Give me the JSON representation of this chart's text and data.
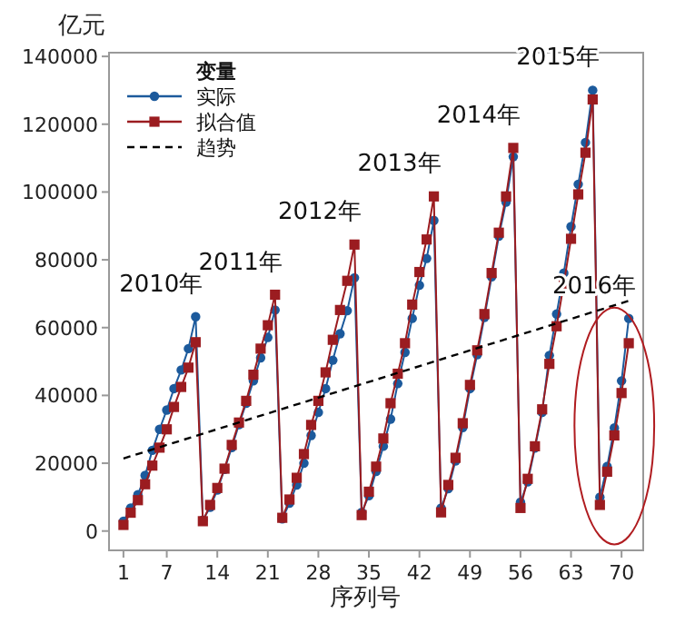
{
  "chart_data": {
    "type": "line",
    "ylabel": "亿元",
    "xlabel": "序列号",
    "legend_title": "变量",
    "legend": "top left",
    "grid": false,
    "x": [
      1,
      2,
      3,
      4,
      5,
      6,
      7,
      8,
      9,
      10,
      11,
      12,
      13,
      14,
      15,
      16,
      17,
      18,
      19,
      20,
      21,
      22,
      23,
      24,
      25,
      26,
      27,
      28,
      29,
      30,
      31,
      32,
      33,
      34,
      35,
      36,
      37,
      38,
      39,
      40,
      41,
      42,
      43,
      44,
      45,
      46,
      47,
      48,
      49,
      50,
      51,
      52,
      53,
      54,
      55,
      56,
      57,
      58,
      59,
      60,
      61,
      62,
      63,
      64,
      65,
      66,
      67,
      68,
      69,
      70,
      71
    ],
    "series": [
      {
        "name": "实际",
        "color": "#1c5a9c",
        "marker": "circle",
        "line_style": "solid",
        "values": [
          2900,
          6800,
          10700,
          16400,
          23800,
          30000,
          35700,
          42000,
          47500,
          53800,
          63200,
          3200,
          7000,
          12100,
          18200,
          24600,
          31400,
          37700,
          44300,
          51100,
          57100,
          65200,
          3600,
          8200,
          13600,
          20000,
          28200,
          35000,
          42000,
          50400,
          58200,
          65000,
          74700,
          5500,
          10400,
          17600,
          25000,
          33000,
          43500,
          52700,
          62700,
          72500,
          80400,
          91600,
          6800,
          12500,
          20700,
          30500,
          42000,
          52000,
          63000,
          75000,
          87000,
          97000,
          110400,
          8500,
          14500,
          24500,
          35000,
          51800,
          64000,
          76100,
          89800,
          102300,
          114600,
          130000,
          10000,
          19000,
          30400,
          44300,
          62700
        ]
      },
      {
        "name": "拟合值",
        "color": "#9b1c20",
        "marker": "square",
        "line_style": "solid",
        "values": [
          1800,
          5400,
          9100,
          13800,
          19300,
          24600,
          30000,
          36600,
          42500,
          48200,
          55700,
          2900,
          7700,
          12700,
          18400,
          25400,
          32000,
          38400,
          46100,
          53800,
          60700,
          69700,
          3900,
          9300,
          15700,
          22700,
          31300,
          38400,
          46800,
          56400,
          65200,
          73800,
          84500,
          4700,
          11600,
          19000,
          27300,
          37700,
          46400,
          55400,
          66800,
          76400,
          86000,
          98700,
          5500,
          13600,
          21600,
          31800,
          43100,
          53300,
          64000,
          76100,
          88000,
          98700,
          113000,
          6800,
          15400,
          25000,
          35900,
          49300,
          60400,
          72900,
          86200,
          99300,
          111600,
          127300,
          7700,
          17500,
          28200,
          40700,
          55400
        ]
      },
      {
        "name": "趋势",
        "color": "#000000",
        "marker": "none",
        "line_style": "dashed",
        "x": [
          1,
          71
        ],
        "values": [
          21400,
          67900
        ]
      }
    ],
    "annotations": [
      {
        "text": "2010年",
        "x": 11,
        "y": 63200
      },
      {
        "text": "2011年",
        "x": 22,
        "y": 69700
      },
      {
        "text": "2012年",
        "x": 33,
        "y": 84500
      },
      {
        "text": "2013年",
        "x": 44,
        "y": 98700
      },
      {
        "text": "2014年",
        "x": 55,
        "y": 113000
      },
      {
        "text": "2015年",
        "x": 66,
        "y": 130000
      },
      {
        "text": "2016年",
        "x": 71,
        "y": 62700
      }
    ],
    "xlim": [
      -1,
      73
    ],
    "xticks": [
      1,
      7,
      14,
      21,
      28,
      35,
      42,
      49,
      56,
      63,
      70
    ],
    "ylim": [
      -5700,
      141100
    ],
    "yticks": [
      0,
      20000,
      40000,
      60000,
      80000,
      100000,
      120000,
      140000
    ]
  }
}
